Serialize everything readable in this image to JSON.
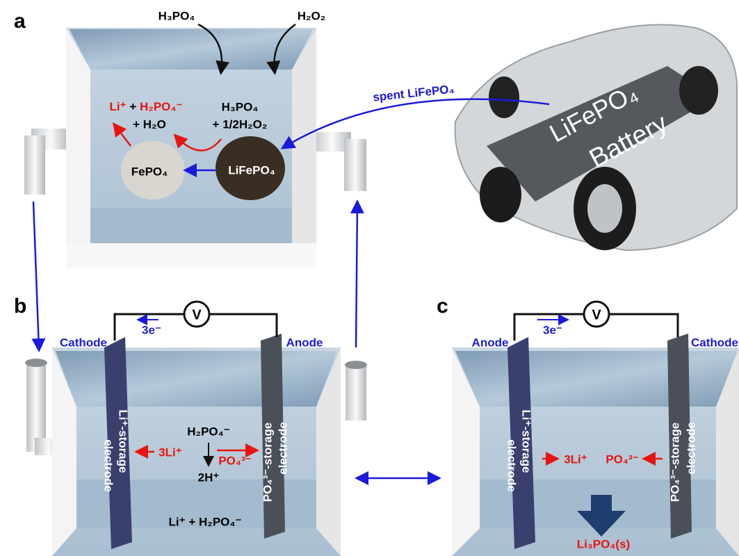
{
  "panel_a": {
    "label": "a",
    "reagent_1": "H₃PO₄",
    "reagent_2": "H₂O₂",
    "product_li": "Li⁺",
    "product_plus": "+",
    "product_h2po4": "H₂PO₄⁻",
    "product_water": "+ H₂O",
    "reactant_acid": "H₃PO₄",
    "reactant_peroxide": "+ 1/2H₂O₂",
    "particle_fepo4": "FePO₄",
    "particle_lifepo4": "LiFePO₄",
    "feed_label": "spent LiFePO₄",
    "battery_line_1": "LiFePO₄",
    "battery_line_2": "Battery"
  },
  "panel_b": {
    "label": "b",
    "left_electrode_role": "Cathode",
    "right_electrode_role": "Anode",
    "electron_flow": "3e⁻",
    "meter": "V",
    "left_electrode_name": "Li⁺-storage",
    "left_electrode_word": "electrode",
    "right_electrode_name": "PO₄³⁻-storage",
    "right_electrode_word": "electrode",
    "lithium_ions": "3Li⁺",
    "dihydrogen_phosphate": "H₂PO₄⁻",
    "protons": "2H⁺",
    "phosphate": "PO₄³⁻",
    "electrolyte": "Li⁺ + H₂PO₄⁻"
  },
  "panel_c": {
    "label": "c",
    "left_electrode_role": "Anode",
    "right_electrode_role": "Cathode",
    "electron_flow": "3e⁻",
    "meter": "V",
    "left_electrode_name": "Li⁺-storage",
    "left_electrode_word": "electrode",
    "right_electrode_name": "PO₄³⁻-storage",
    "right_electrode_word": "electrode",
    "lithium_ions": "3Li⁺",
    "phosphate": "PO₄³⁻",
    "precipitate": "Li₃PO₄(s)"
  }
}
